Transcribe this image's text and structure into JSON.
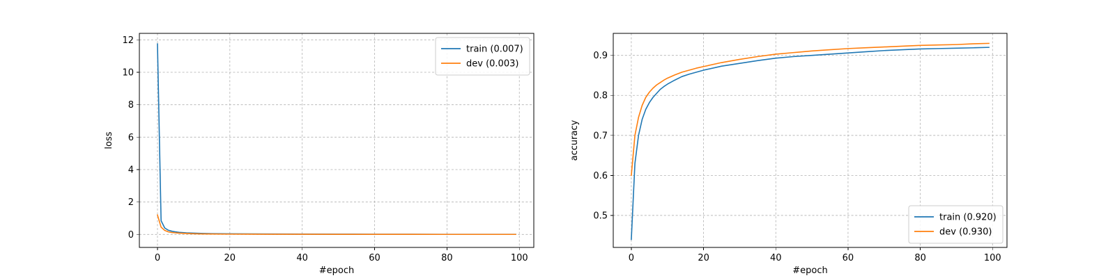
{
  "chart_data": [
    {
      "type": "line",
      "xlabel": "#epoch",
      "ylabel": "loss",
      "xlim": [
        -5,
        104
      ],
      "ylim": [
        -0.8,
        12.4
      ],
      "xticks": [
        0,
        20,
        40,
        60,
        80,
        100
      ],
      "yticks": [
        0,
        2,
        4,
        6,
        8,
        10,
        12
      ],
      "grid": true,
      "legend_position": "top-right",
      "x": [
        0,
        1,
        2,
        3,
        4,
        5,
        6,
        8,
        10,
        12,
        15,
        20,
        25,
        30,
        40,
        50,
        60,
        70,
        80,
        90,
        99
      ],
      "series": [
        {
          "name": "train (0.007)",
          "color": "#1f77b4",
          "values": [
            11.75,
            0.85,
            0.4,
            0.26,
            0.2,
            0.16,
            0.13,
            0.1,
            0.08,
            0.065,
            0.05,
            0.04,
            0.033,
            0.028,
            0.022,
            0.017,
            0.014,
            0.011,
            0.009,
            0.008,
            0.007
          ]
        },
        {
          "name": "dev (0.003)",
          "color": "#ff7f0e",
          "values": [
            1.2,
            0.45,
            0.25,
            0.16,
            0.12,
            0.1,
            0.08,
            0.06,
            0.045,
            0.035,
            0.028,
            0.02,
            0.016,
            0.013,
            0.01,
            0.008,
            0.006,
            0.005,
            0.004,
            0.0035,
            0.003
          ]
        }
      ]
    },
    {
      "type": "line",
      "xlabel": "#epoch",
      "ylabel": "accuracy",
      "xlim": [
        -5,
        104
      ],
      "ylim": [
        0.42,
        0.955
      ],
      "xticks": [
        0,
        20,
        40,
        60,
        80,
        100
      ],
      "yticks": [
        0.5,
        0.6,
        0.7,
        0.8,
        0.9
      ],
      "ytick_labels": [
        "0.5",
        "0.6",
        "0.7",
        "0.8",
        "0.9"
      ],
      "grid": true,
      "legend_position": "bottom-right",
      "x": [
        0,
        1,
        2,
        3,
        4,
        5,
        6,
        7,
        8,
        9,
        10,
        12,
        14,
        16,
        18,
        20,
        25,
        30,
        35,
        40,
        45,
        50,
        55,
        60,
        65,
        70,
        75,
        80,
        85,
        90,
        95,
        99
      ],
      "series": [
        {
          "name": "train (0.920)",
          "color": "#1f77b4",
          "values": [
            0.44,
            0.63,
            0.7,
            0.74,
            0.765,
            0.782,
            0.795,
            0.805,
            0.815,
            0.822,
            0.828,
            0.838,
            0.847,
            0.853,
            0.858,
            0.863,
            0.873,
            0.88,
            0.887,
            0.893,
            0.897,
            0.9,
            0.903,
            0.906,
            0.909,
            0.912,
            0.914,
            0.916,
            0.917,
            0.918,
            0.919,
            0.92
          ]
        },
        {
          "name": "dev (0.930)",
          "color": "#ff7f0e",
          "values": [
            0.6,
            0.7,
            0.745,
            0.775,
            0.795,
            0.808,
            0.818,
            0.826,
            0.832,
            0.838,
            0.843,
            0.851,
            0.858,
            0.863,
            0.868,
            0.872,
            0.882,
            0.89,
            0.897,
            0.903,
            0.907,
            0.911,
            0.914,
            0.917,
            0.919,
            0.921,
            0.923,
            0.925,
            0.926,
            0.927,
            0.929,
            0.93
          ]
        }
      ]
    }
  ]
}
